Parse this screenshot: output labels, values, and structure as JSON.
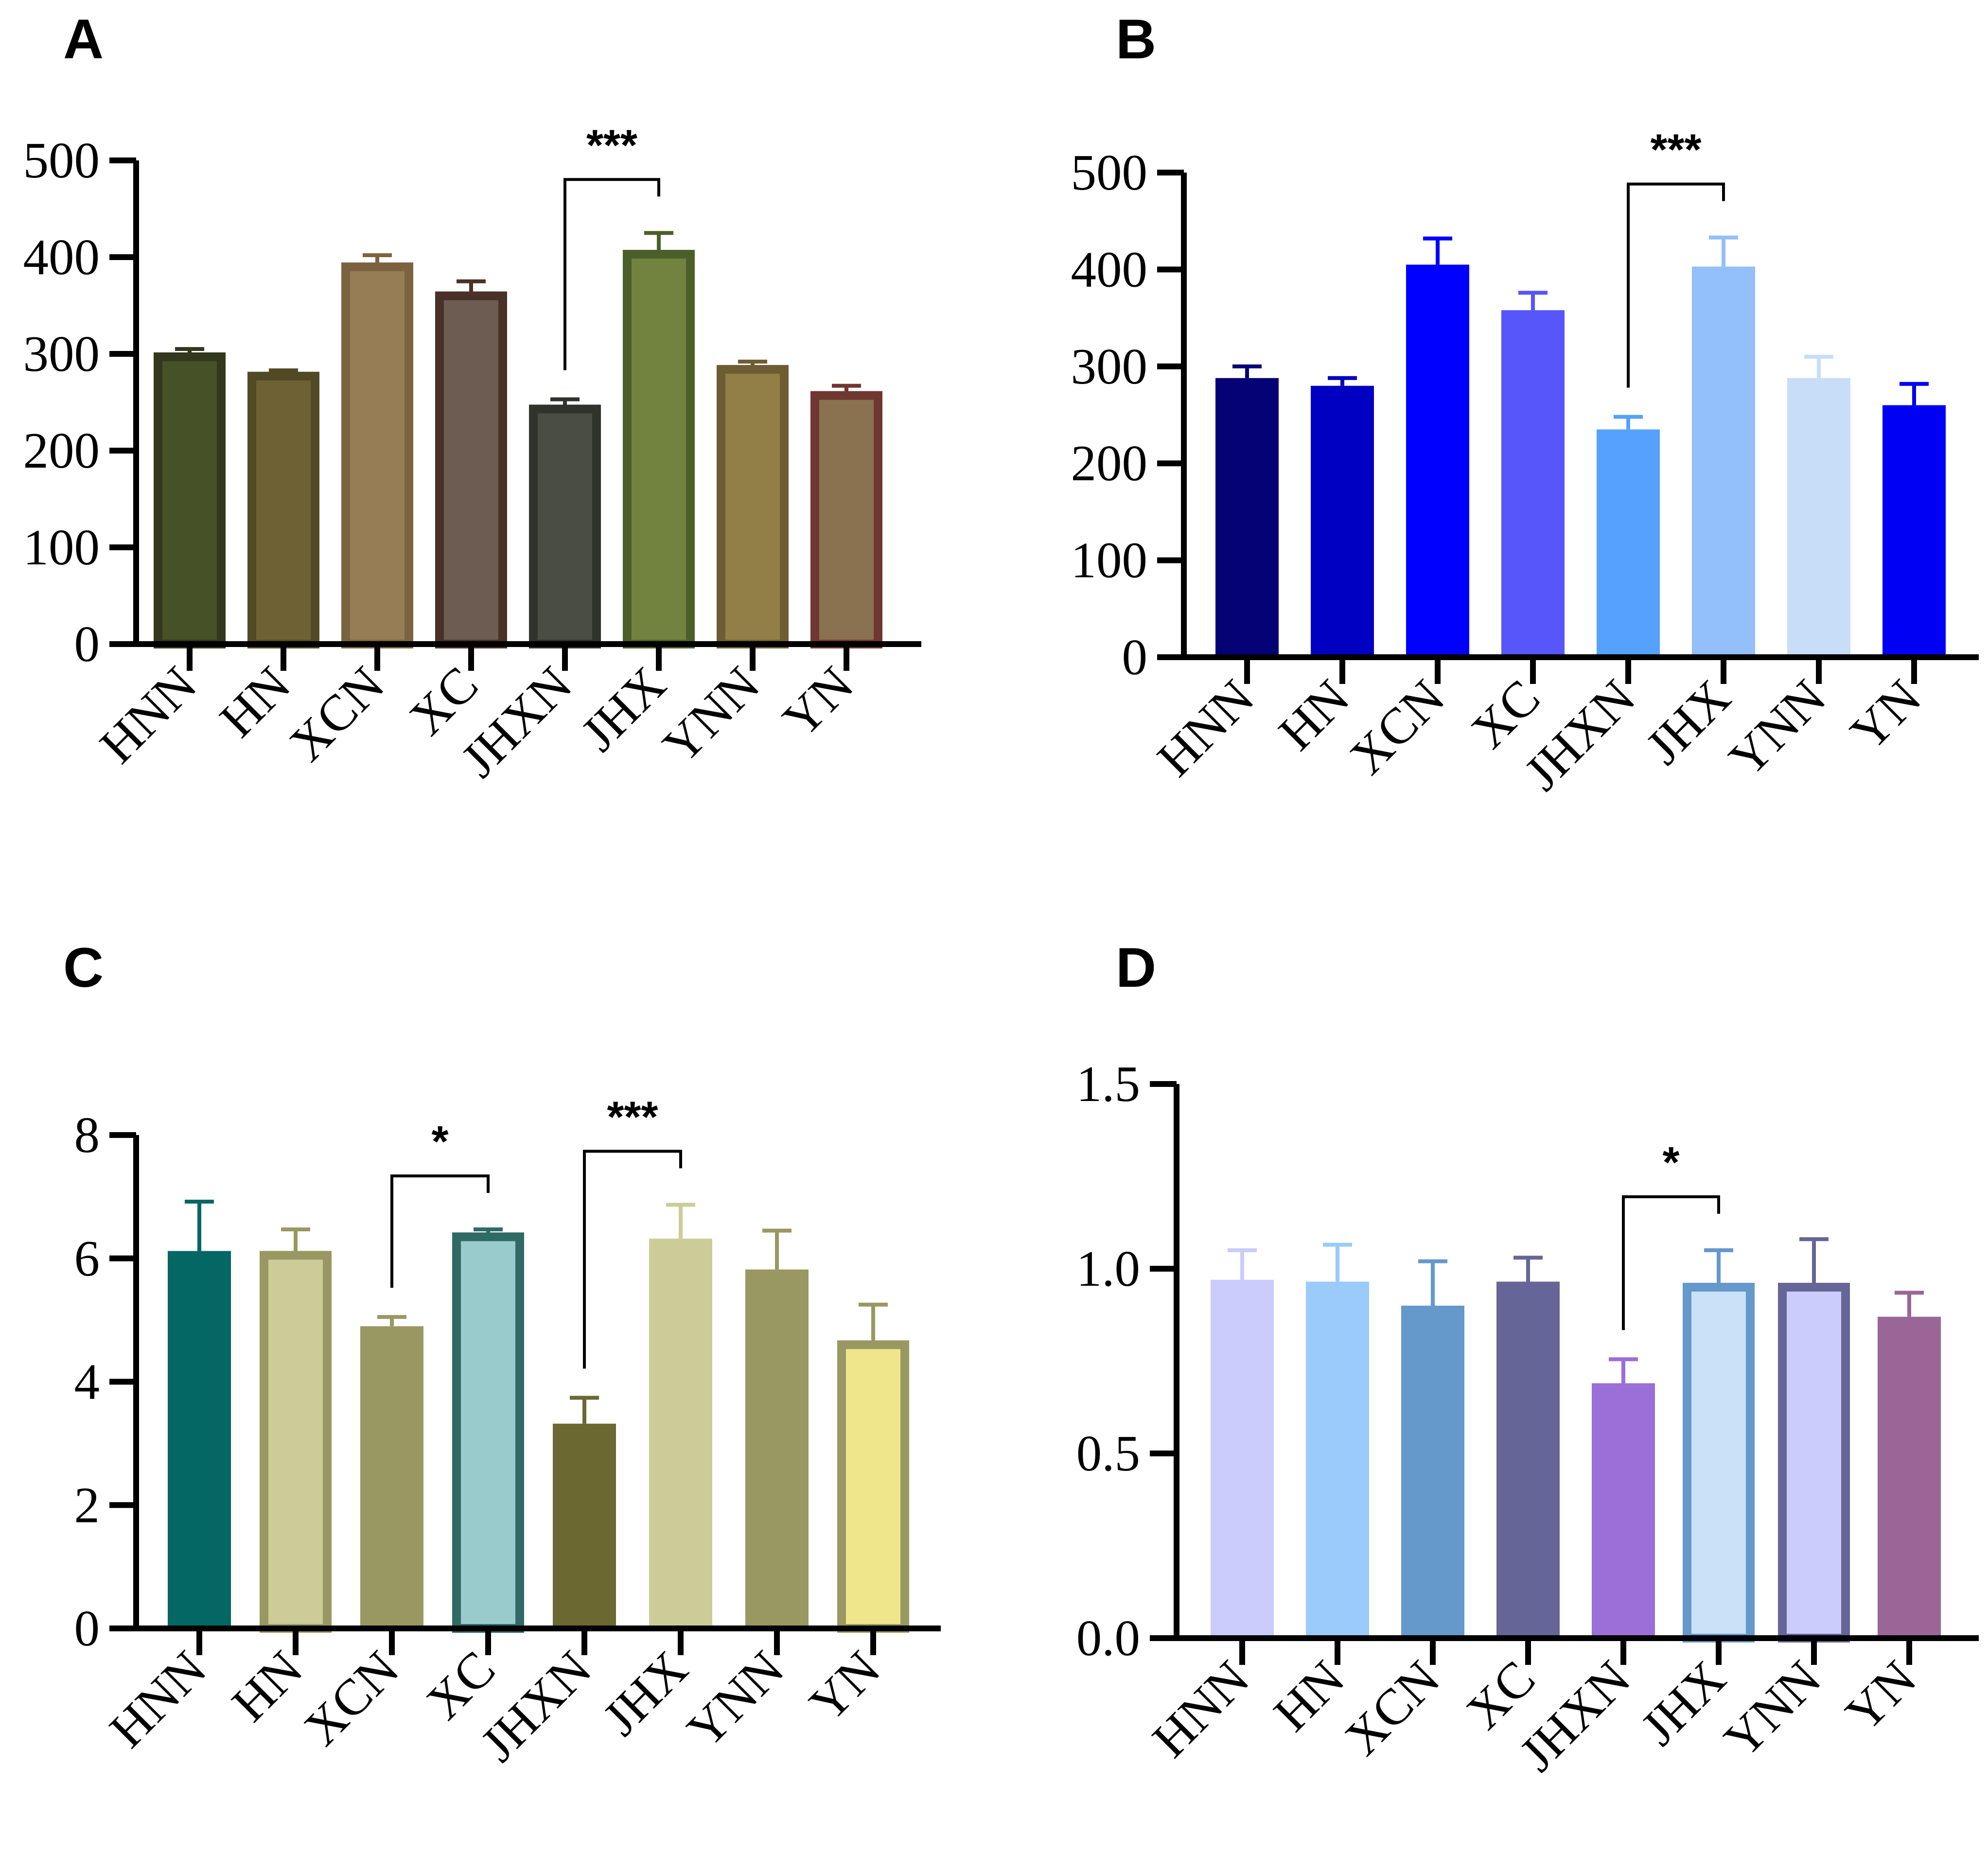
{
  "chart_data": [
    {
      "panel": "A",
      "type": "bar",
      "categories": [
        "HNN",
        "HN",
        "XCN",
        "XC",
        "JHXN",
        "JHX",
        "YNN",
        "YN"
      ],
      "values": [
        297,
        277,
        390,
        360,
        243,
        403,
        284,
        257
      ],
      "errors": [
        8,
        6,
        12,
        15,
        10,
        22,
        8,
        10
      ],
      "ylim": [
        0,
        500
      ],
      "yticks": [
        "0",
        "100",
        "200",
        "300",
        "400",
        "500"
      ],
      "colors": [
        "#475127",
        "#6e6235",
        "#967d55",
        "#6c5c51",
        "#4a4d43",
        "#728340",
        "#927f47",
        "#8a7150"
      ],
      "edge_colors": [
        "#33371d",
        "#524a25",
        "#7c6340",
        "#4a3128",
        "#2f332b",
        "#4c5f29",
        "#6e5d33",
        "#6e3730"
      ],
      "significance": [
        {
          "from": 4,
          "to": 5,
          "label": "***"
        }
      ]
    },
    {
      "panel": "B",
      "type": "bar",
      "categories": [
        "HNN",
        "HN",
        "XCN",
        "XC",
        "JHXN",
        "JHX",
        "YNN",
        "YN"
      ],
      "values": [
        288,
        280,
        405,
        358,
        235,
        403,
        288,
        260
      ],
      "errors": [
        12,
        8,
        27,
        18,
        13,
        30,
        22,
        22
      ],
      "ylim": [
        0,
        500
      ],
      "yticks": [
        "0",
        "100",
        "200",
        "300",
        "400",
        "500"
      ],
      "colors": [
        "#040274",
        "#0000c2",
        "#0000fe",
        "#5656fa",
        "#56a1fb",
        "#93bffa",
        "#c8ddf7",
        "#0000f5"
      ],
      "edge_colors": [
        "#040274",
        "#0000c2",
        "#0000fe",
        "#5656fa",
        "#56a1fb",
        "#93bffa",
        "#c8ddf7",
        "#0000f5"
      ],
      "significance": [
        {
          "from": 4,
          "to": 5,
          "label": "***"
        }
      ]
    },
    {
      "panel": "C",
      "type": "bar",
      "categories": [
        "HNN",
        "HN",
        "XCN",
        "XC",
        "JHXN",
        "JHX",
        "YNN",
        "YN"
      ],
      "values": [
        6.12,
        6.05,
        4.9,
        6.35,
        3.32,
        6.32,
        5.82,
        4.6
      ],
      "errors": [
        0.8,
        0.42,
        0.15,
        0.12,
        0.42,
        0.55,
        0.63,
        0.65
      ],
      "ylim": [
        0,
        8
      ],
      "yticks": [
        "0",
        "2",
        "4",
        "6",
        "8"
      ],
      "colors": [
        "#046763",
        "#cbcc98",
        "#9a9862",
        "#9acbcc",
        "#6b6832",
        "#cbcc98",
        "#9a9862",
        "#efe68b"
      ],
      "edge_colors": [
        "#046763",
        "#9a9862",
        "#9a9862",
        "#2f6a67",
        "#6b6832",
        "#cbcc98",
        "#9a9862",
        "#9a9862"
      ],
      "significance": [
        {
          "from": 2,
          "to": 3,
          "label": "*"
        },
        {
          "from": 4,
          "to": 5,
          "label": "***"
        }
      ]
    },
    {
      "panel": "D",
      "type": "bar",
      "categories": [
        "HNN",
        "HN",
        "XCN",
        "XC",
        "JHXN",
        "JHX",
        "YNN",
        "YN"
      ],
      "values": [
        0.97,
        0.965,
        0.9,
        0.965,
        0.69,
        0.95,
        0.95,
        0.87
      ],
      "errors": [
        0.08,
        0.1,
        0.12,
        0.065,
        0.065,
        0.1,
        0.13,
        0.065
      ],
      "ylim": [
        0,
        1.5
      ],
      "yticks": [
        "0.0",
        "0.5",
        "1.0",
        "1.5"
      ],
      "colors": [
        "#cbcbfc",
        "#9acbfa",
        "#6598cb",
        "#656597",
        "#9a6fd7",
        "#cbe1f8",
        "#cbcbfc",
        "#9a6697"
      ],
      "edge_colors": [
        "#cbcbfc",
        "#9acbfa",
        "#6598cb",
        "#656597",
        "#9a6fd7",
        "#6598cb",
        "#656597",
        "#9a6697"
      ],
      "significance": [
        {
          "from": 4,
          "to": 5,
          "label": "*"
        }
      ]
    }
  ]
}
